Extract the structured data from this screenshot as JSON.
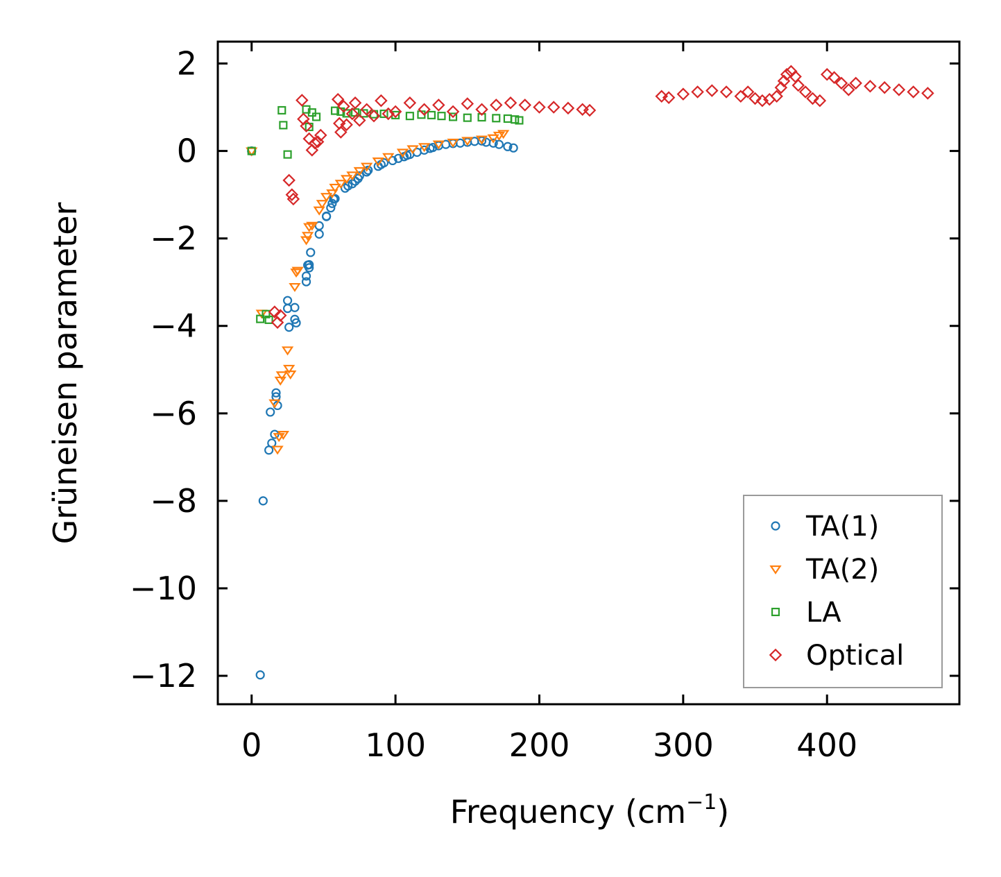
{
  "chart_data": {
    "type": "scatter",
    "title": "",
    "xlabel": "Frequency (cm",
    "xlabel_sup": "−1",
    "xlabel_close": ")",
    "ylabel": "Grüneisen parameter",
    "xlim": [
      -23.5,
      492
    ],
    "ylim": [
      -12.65,
      2.5
    ],
    "xticks": [
      0,
      100,
      200,
      300,
      400
    ],
    "xtick_labels": [
      "0",
      "100",
      "200",
      "300",
      "400"
    ],
    "yticks": [
      2,
      0,
      -2,
      -4,
      -6,
      -8,
      -10,
      -12
    ],
    "ytick_labels": [
      "2",
      "0",
      "−2",
      "−4",
      "−6",
      "−8",
      "−10",
      "−12"
    ],
    "legend_position": "lower-right",
    "series": [
      {
        "name": "TA(1)",
        "marker": "circle",
        "color": "#1f77b4",
        "x": [
          0,
          6,
          8,
          12,
          13,
          14,
          16,
          17,
          17,
          18,
          25,
          25,
          26,
          30,
          30,
          31,
          38,
          38,
          39,
          40,
          40,
          41,
          47,
          47,
          52,
          52,
          55,
          56,
          57,
          58,
          65,
          67,
          70,
          72,
          74,
          75,
          80,
          81,
          88,
          90,
          92,
          98,
          102,
          106,
          108,
          110,
          115,
          120,
          124,
          126,
          130,
          135,
          140,
          145,
          150,
          155,
          160,
          163,
          168,
          172,
          178,
          182
        ],
        "y": [
          0,
          -11.98,
          -8.0,
          -6.84,
          -5.97,
          -6.68,
          -6.48,
          -5.53,
          -5.62,
          -5.82,
          -3.42,
          -3.6,
          -4.03,
          -3.58,
          -3.85,
          -3.93,
          -2.99,
          -2.86,
          -2.61,
          -2.67,
          -2.6,
          -2.32,
          -1.9,
          -1.71,
          -1.5,
          -1.49,
          -1.3,
          -1.2,
          -1.1,
          -1.09,
          -0.85,
          -0.8,
          -0.75,
          -0.69,
          -0.63,
          -0.57,
          -0.48,
          -0.44,
          -0.35,
          -0.31,
          -0.27,
          -0.22,
          -0.17,
          -0.13,
          -0.1,
          -0.08,
          -0.03,
          0.02,
          0.06,
          0.08,
          0.12,
          0.15,
          0.17,
          0.18,
          0.2,
          0.22,
          0.23,
          0.2,
          0.18,
          0.15,
          0.1,
          0.07
        ]
      },
      {
        "name": "TA(2)",
        "marker": "triangle-down",
        "color": "#ff7f0e",
        "x": [
          0,
          7,
          16,
          18,
          19,
          20,
          21,
          22,
          25,
          26,
          27,
          30,
          31,
          32,
          38,
          39,
          40,
          42,
          47,
          49,
          52,
          56,
          58,
          62,
          66,
          70,
          75,
          80,
          88,
          95,
          105,
          112,
          120,
          130,
          140,
          150,
          160,
          168,
          172,
          175
        ],
        "y": [
          0,
          -3.71,
          -5.76,
          -6.82,
          -6.53,
          -5.24,
          -5.12,
          -6.48,
          -4.55,
          -4.97,
          -5.1,
          -3.1,
          -2.77,
          -2.73,
          -2.03,
          -1.93,
          -1.73,
          -1.7,
          -1.35,
          -1.2,
          -1.04,
          -0.96,
          -0.83,
          -0.74,
          -0.63,
          -0.55,
          -0.45,
          -0.35,
          -0.23,
          -0.13,
          -0.03,
          0.05,
          0.1,
          0.16,
          0.2,
          0.24,
          0.27,
          0.3,
          0.36,
          0.4
        ]
      },
      {
        "name": "LA",
        "marker": "square",
        "color": "#2ca02c",
        "x": [
          0,
          6,
          10,
          12,
          21,
          22,
          25,
          38,
          40,
          42,
          45,
          58,
          62,
          66,
          72,
          78,
          85,
          92,
          100,
          110,
          118,
          125,
          132,
          140,
          150,
          160,
          170,
          178,
          183,
          186
        ],
        "y": [
          0,
          -3.84,
          -3.73,
          -3.86,
          0.93,
          0.59,
          -0.08,
          0.95,
          0.55,
          0.88,
          0.78,
          0.92,
          0.9,
          0.86,
          0.88,
          0.86,
          0.84,
          0.85,
          0.82,
          0.8,
          0.83,
          0.82,
          0.8,
          0.78,
          0.76,
          0.77,
          0.75,
          0.74,
          0.72,
          0.7
        ]
      },
      {
        "name": "Optical",
        "marker": "diamond",
        "color": "#d62728",
        "x": [
          16,
          18,
          20,
          26,
          28,
          29,
          35,
          36,
          38,
          40,
          42,
          44,
          46,
          48,
          60,
          61,
          62,
          64,
          66,
          70,
          72,
          75,
          80,
          85,
          90,
          95,
          100,
          110,
          120,
          130,
          140,
          150,
          160,
          170,
          180,
          190,
          200,
          210,
          220,
          230,
          235,
          285,
          290,
          300,
          310,
          320,
          330,
          340,
          345,
          350,
          355,
          360,
          365,
          368,
          370,
          372,
          375,
          378,
          380,
          385,
          390,
          395,
          400,
          405,
          410,
          415,
          420,
          430,
          440,
          450,
          460,
          470
        ],
        "y": [
          -3.68,
          -3.92,
          -3.76,
          -0.67,
          -1.0,
          -1.1,
          1.16,
          0.73,
          0.57,
          0.28,
          0.02,
          0.18,
          0.21,
          0.36,
          1.18,
          0.63,
          0.43,
          1.02,
          0.6,
          0.85,
          1.1,
          0.7,
          0.95,
          0.8,
          1.15,
          0.85,
          0.9,
          1.1,
          0.95,
          1.05,
          0.9,
          1.08,
          0.95,
          1.05,
          1.1,
          1.05,
          1.0,
          1.0,
          0.98,
          0.95,
          0.93,
          1.25,
          1.22,
          1.3,
          1.35,
          1.38,
          1.35,
          1.25,
          1.35,
          1.2,
          1.15,
          1.18,
          1.25,
          1.45,
          1.6,
          1.75,
          1.82,
          1.7,
          1.5,
          1.35,
          1.2,
          1.15,
          1.75,
          1.68,
          1.55,
          1.4,
          1.55,
          1.48,
          1.45,
          1.4,
          1.35,
          1.32
        ]
      }
    ]
  },
  "colors": {
    "axis": "#000000",
    "legend_border": "#9a9a9a"
  }
}
